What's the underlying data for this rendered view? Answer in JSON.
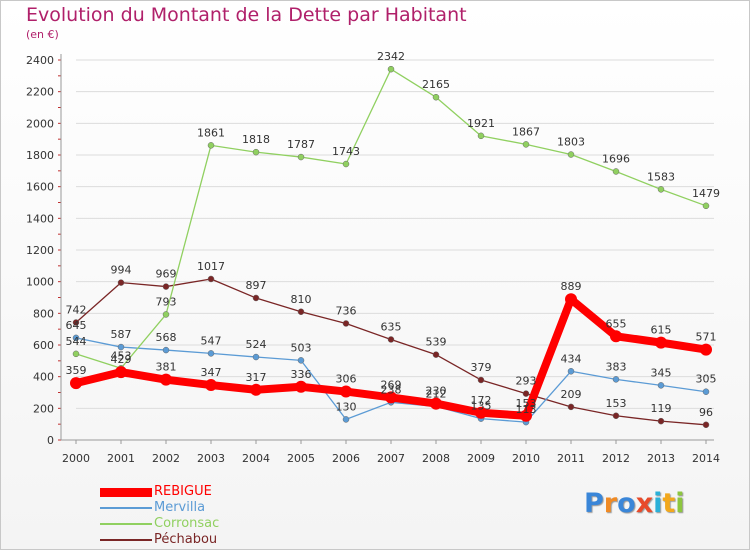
{
  "header": {
    "title": "Evolution du Montant de la Dette par Habitant",
    "subtitle": "(en €)"
  },
  "logo": {
    "text": "Proxiti"
  },
  "colors": {
    "title": "#b0206a",
    "grid": "#dcdcdc",
    "REBIGUE": "#ff0000",
    "Mervilla": "#5b9bd5",
    "Corronsac": "#90d060",
    "Pechabou": "#7a2626"
  },
  "chart_data": {
    "type": "line",
    "title": "Evolution du Montant de la Dette par Habitant",
    "subtitle": "(en €)",
    "xlabel": "",
    "ylabel": "",
    "ylim": [
      0,
      2400
    ],
    "yticks": [
      0,
      200,
      400,
      600,
      800,
      1000,
      1200,
      1400,
      1600,
      1800,
      2000,
      2200,
      2400
    ],
    "grid": true,
    "legend": "bottom-left",
    "x": [
      "2000",
      "2001",
      "2002",
      "2003",
      "2004",
      "2005",
      "2006",
      "2007",
      "2008",
      "2009",
      "2010",
      "2011",
      "2012",
      "2013",
      "2014"
    ],
    "series": [
      {
        "name": "REBIGUE",
        "color": "#ff0000",
        "values": [
          359,
          429,
          381,
          347,
          317,
          336,
          306,
          269,
          230,
          172,
          153,
          889,
          655,
          615,
          571
        ]
      },
      {
        "name": "Mervilla",
        "color": "#5b9bd5",
        "values": [
          645,
          587,
          568,
          547,
          524,
          503,
          130,
          238,
          212,
          135,
          113,
          434,
          383,
          345,
          305
        ]
      },
      {
        "name": "Corronsac",
        "color": "#90d060",
        "values": [
          544,
          453,
          793,
          1861,
          1818,
          1787,
          1743,
          2342,
          2165,
          1921,
          1867,
          1803,
          1696,
          1583,
          1479
        ]
      },
      {
        "name": "Péchabou",
        "color": "#7a2626",
        "values": [
          742,
          994,
          969,
          1017,
          897,
          810,
          736,
          635,
          539,
          379,
          293,
          209,
          153,
          119,
          96
        ]
      }
    ]
  }
}
